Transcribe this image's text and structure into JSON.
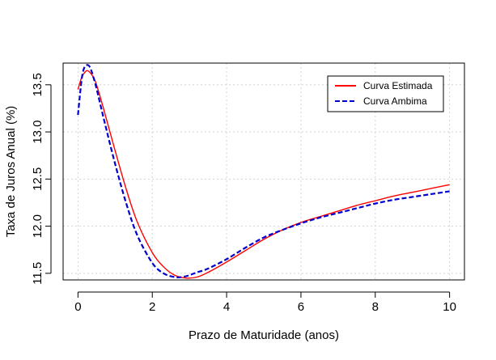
{
  "chart_data": {
    "type": "line",
    "title": "",
    "xlabel": "Prazo de Maturidade (anos)",
    "ylabel": "Taxa de Juros Anual (%)",
    "xlim": [
      -0.4,
      10.4
    ],
    "ylim": [
      11.43,
      13.73
    ],
    "xticks": [
      0,
      2,
      4,
      6,
      8,
      10
    ],
    "yticks": [
      11.5,
      12.0,
      12.5,
      13.0,
      13.5
    ],
    "xtick_labels": [
      "0",
      "2",
      "4",
      "6",
      "8",
      "10"
    ],
    "ytick_labels": [
      "11.5",
      "12.0",
      "12.5",
      "13.0",
      "13.5"
    ],
    "grid": true,
    "legend_position": "top-right",
    "series": [
      {
        "name": "Curva Estimada",
        "color": "#ff0000",
        "style": "solid",
        "x": [
          0,
          0.1,
          0.2,
          0.25,
          0.3,
          0.4,
          0.5,
          0.7,
          1.0,
          1.3,
          1.6,
          2.0,
          2.3,
          2.6,
          2.9,
          3.2,
          3.5,
          4.0,
          4.5,
          5.0,
          5.5,
          6.0,
          6.5,
          7.0,
          7.5,
          8.0,
          8.5,
          9.0,
          9.5,
          10.0
        ],
        "y": [
          13.45,
          13.58,
          13.64,
          13.65,
          13.64,
          13.59,
          13.5,
          13.23,
          12.8,
          12.39,
          12.04,
          11.72,
          11.57,
          11.48,
          11.45,
          11.46,
          11.51,
          11.62,
          11.74,
          11.86,
          11.96,
          12.04,
          12.1,
          12.16,
          12.22,
          12.27,
          12.32,
          12.36,
          12.4,
          12.44
        ]
      },
      {
        "name": "Curva Ambima",
        "color": "#0000cd",
        "style": "dashed",
        "x": [
          0,
          0.05,
          0.1,
          0.15,
          0.2,
          0.25,
          0.3,
          0.35,
          0.4,
          0.5,
          0.7,
          1.0,
          1.3,
          1.6,
          2.0,
          2.3,
          2.6,
          2.8,
          3.0,
          3.2,
          3.5,
          4.0,
          4.5,
          5.0,
          5.5,
          6.0,
          6.5,
          7.0,
          7.5,
          8.0,
          8.5,
          9.0,
          9.5,
          10.0
        ],
        "y": [
          13.18,
          13.38,
          13.56,
          13.66,
          13.7,
          13.71,
          13.7,
          13.66,
          13.6,
          13.46,
          13.13,
          12.66,
          12.24,
          11.9,
          11.61,
          11.5,
          11.46,
          11.46,
          11.48,
          11.51,
          11.55,
          11.65,
          11.77,
          11.88,
          11.96,
          12.03,
          12.09,
          12.14,
          12.19,
          12.24,
          12.28,
          12.31,
          12.34,
          12.37
        ]
      }
    ]
  }
}
